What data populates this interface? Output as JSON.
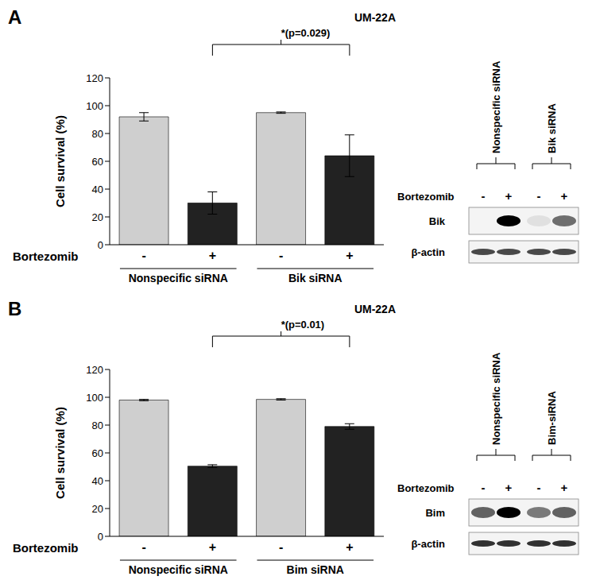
{
  "chart_data": [
    {
      "type": "bar",
      "title": "A",
      "subtitle": "UM-22A",
      "ylabel": "Cell survival (%)",
      "xlabel": "Bortezomib",
      "categories": [
        "-",
        "+",
        "-",
        "+"
      ],
      "groups": [
        "Nonspecific siRNA",
        "Bik siRNA"
      ],
      "values": [
        92,
        30,
        95,
        64
      ],
      "errors": [
        3,
        8,
        0.5,
        15
      ],
      "colors": [
        "#cfcfcf",
        "#222222",
        "#cfcfcf",
        "#222222"
      ],
      "ylim": [
        0,
        120
      ],
      "yticks": [
        0,
        20,
        40,
        60,
        80,
        100,
        120
      ],
      "grid": false,
      "annotations": [
        "*(p=0.029)"
      ]
    },
    {
      "type": "bar",
      "title": "B",
      "subtitle": "UM-22A",
      "ylabel": "Cell survival (%)",
      "xlabel": "Bortezomib",
      "categories": [
        "-",
        "+",
        "-",
        "+"
      ],
      "groups": [
        "Nonspecific siRNA",
        "Bim siRNA"
      ],
      "values": [
        98,
        50.5,
        98.5,
        79
      ],
      "errors": [
        0.5,
        1,
        0.5,
        2
      ],
      "colors": [
        "#cfcfcf",
        "#222222",
        "#cfcfcf",
        "#222222"
      ],
      "ylim": [
        0,
        120
      ],
      "yticks": [
        0,
        20,
        40,
        60,
        80,
        100,
        120
      ],
      "grid": false,
      "annotations": [
        "*(p=0.01)"
      ]
    }
  ],
  "blots": [
    {
      "treatment": "Bortezomib",
      "lane_groups": [
        "Nonspecific siRNA",
        "Bik siRNA"
      ],
      "lane_signs": [
        "-",
        "+",
        "-",
        "+"
      ],
      "rows": [
        "Bik",
        "β-actin"
      ]
    },
    {
      "treatment": "Bortezomib",
      "lane_groups": [
        "Nonspecific siRNA",
        "Bim-siRNA"
      ],
      "lane_signs": [
        "-",
        "+",
        "-",
        "+"
      ],
      "rows": [
        "Bim",
        "β-actin"
      ]
    }
  ]
}
